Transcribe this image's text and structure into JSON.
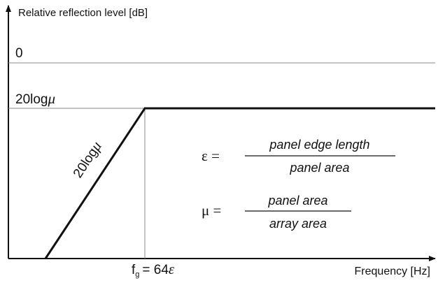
{
  "axes": {
    "y_label": "Relative reflection level [dB]",
    "x_label": "Frequency [Hz]"
  },
  "levels": [
    {
      "label": "0"
    },
    {
      "label": "20log",
      "symbol": "μ"
    }
  ],
  "slope_label": {
    "text": "20log",
    "symbol": "μ"
  },
  "cutoff": {
    "symbol": "f",
    "subscript": "g",
    "equals": "= 64",
    "param": "ε"
  },
  "formulas": [
    {
      "lhs": "ε =",
      "numerator": "panel edge length",
      "denominator": "panel area"
    },
    {
      "lhs": "μ =",
      "numerator": "panel area",
      "denominator": "array area"
    }
  ]
}
